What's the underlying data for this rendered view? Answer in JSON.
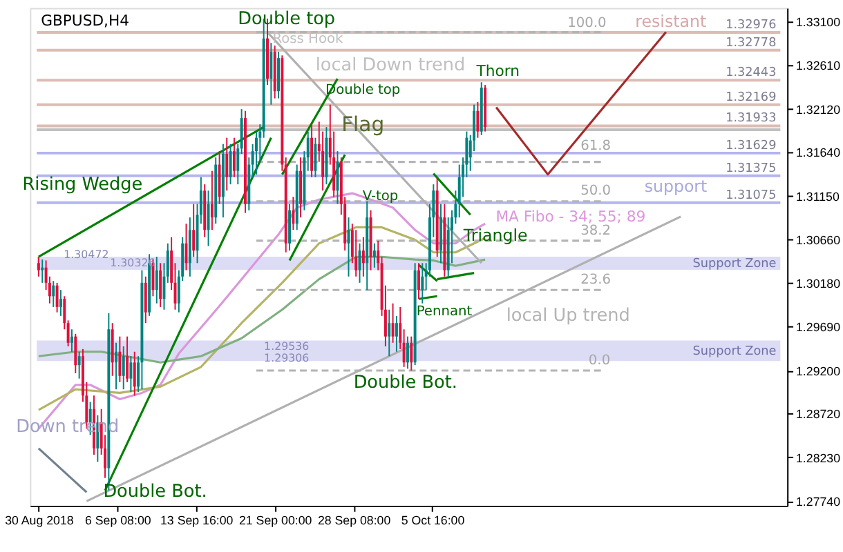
{
  "chart_data": {
    "type": "candlestick",
    "title": "GBPUSD,H4",
    "x": [
      "2018-08-30T00:00",
      "2018-08-30T08:15",
      "2018-08-30T16:30",
      "2018-08-31T00:45",
      "2018-08-31T09:00",
      "2018-08-31T17:15",
      "2018-09-01T01:30",
      "2018-09-01T09:45",
      "2018-09-01T18:00",
      "2018-09-02T02:15",
      "2018-09-02T10:30",
      "2018-09-02T18:45",
      "2018-09-03T03:00",
      "2018-09-03T11:15",
      "2018-09-03T19:30",
      "2018-09-04T03:45",
      "2018-09-04T12:00",
      "2018-09-04T20:15",
      "2018-09-05T04:30",
      "2018-09-05T12:45",
      "2018-09-05T21:00",
      "2018-09-06T05:15",
      "2018-09-06T13:30",
      "2018-09-06T21:45",
      "2018-09-07T06:00",
      "2018-09-07T14:15",
      "2018-09-07T22:30",
      "2018-09-08T06:45",
      "2018-09-08T15:00",
      "2018-09-08T23:15",
      "2018-09-09T07:30",
      "2018-09-09T15:45",
      "2018-09-10T00:00",
      "2018-09-10T08:15",
      "2018-09-10T16:30",
      "2018-09-11T00:45",
      "2018-09-11T09:00",
      "2018-09-11T17:15",
      "2018-09-12T01:30",
      "2018-09-12T09:45",
      "2018-09-12T18:00",
      "2018-09-13T02:15",
      "2018-09-13T10:30",
      "2018-09-13T18:45",
      "2018-09-14T03:00",
      "2018-09-14T11:15",
      "2018-09-14T19:30",
      "2018-09-15T03:45",
      "2018-09-15T12:00",
      "2018-09-15T20:15",
      "2018-09-16T04:30",
      "2018-09-16T12:45",
      "2018-09-16T21:00",
      "2018-09-17T05:15",
      "2018-09-17T13:30",
      "2018-09-17T21:45",
      "2018-09-18T06:00",
      "2018-09-18T14:15",
      "2018-09-18T22:30",
      "2018-09-19T06:45",
      "2018-09-19T15:00",
      "2018-09-19T23:15",
      "2018-09-20T07:30",
      "2018-09-20T15:45",
      "2018-09-21T00:00",
      "2018-09-21T08:15",
      "2018-09-21T16:30",
      "2018-09-22T00:45",
      "2018-09-22T09:00",
      "2018-09-22T17:15",
      "2018-09-23T01:30",
      "2018-09-23T09:45",
      "2018-09-23T18:00",
      "2018-09-24T02:15",
      "2018-09-24T10:30",
      "2018-09-24T18:45",
      "2018-09-25T03:00",
      "2018-09-25T11:15",
      "2018-09-25T19:30",
      "2018-09-26T03:45",
      "2018-09-26T12:00",
      "2018-09-26T20:15",
      "2018-09-27T04:30",
      "2018-09-27T12:45",
      "2018-09-27T21:00",
      "2018-09-28T05:15",
      "2018-09-28T13:30",
      "2018-09-28T21:45",
      "2018-09-29T06:00",
      "2018-09-29T14:15",
      "2018-09-29T22:30",
      "2018-09-30T06:45",
      "2018-09-30T15:00",
      "2018-09-30T23:15",
      "2018-10-01T07:30",
      "2018-10-01T15:45",
      "2018-10-02T00:00",
      "2018-10-02T08:15",
      "2018-10-02T16:30",
      "2018-10-03T00:45",
      "2018-10-03T09:00",
      "2018-10-03T17:15",
      "2018-10-04T01:30",
      "2018-10-04T09:45",
      "2018-10-04T18:00",
      "2018-10-05T02:15",
      "2018-10-05T10:30",
      "2018-10-05T18:45",
      "2018-10-06T03:00",
      "2018-10-06T11:15",
      "2018-10-06T19:30",
      "2018-10-07T03:45",
      "2018-10-07T12:00",
      "2018-10-07T20:15",
      "2018-10-08T04:30",
      "2018-10-08T12:45",
      "2018-10-08T21:00",
      "2018-10-09T05:15",
      "2018-10-09T13:30",
      "2018-10-09T21:45",
      "2018-10-10T06:00",
      "2018-10-10T14:15"
    ],
    "ohlc": [
      [
        1.304,
        1.3047,
        1.3025,
        1.3032
      ],
      [
        1.3032,
        1.3044,
        1.3018,
        1.3035
      ],
      [
        1.3035,
        1.3043,
        1.301,
        1.3018
      ],
      [
        1.3018,
        1.3025,
        1.2995,
        1.3003
      ],
      [
        1.3003,
        1.302,
        1.2991,
        1.3015
      ],
      [
        1.3015,
        1.3018,
        1.2985,
        1.2991
      ],
      [
        1.2991,
        1.301,
        1.2981,
        1.3
      ],
      [
        1.3,
        1.3003,
        1.2966,
        1.2973
      ],
      [
        1.2973,
        1.2976,
        1.2947,
        1.2951
      ],
      [
        1.2951,
        1.2966,
        1.2941,
        1.2958
      ],
      [
        1.2958,
        1.2961,
        1.2917,
        1.2926
      ],
      [
        1.2926,
        1.2941,
        1.2911,
        1.2936
      ],
      [
        1.2936,
        1.2944,
        1.2885,
        1.2892
      ],
      [
        1.2892,
        1.2907,
        1.2855,
        1.2862
      ],
      [
        1.2862,
        1.2885,
        1.2848,
        1.2877
      ],
      [
        1.2877,
        1.2892,
        1.2826,
        1.2833
      ],
      [
        1.2833,
        1.287,
        1.2818,
        1.2862
      ],
      [
        1.2862,
        1.2877,
        1.2826,
        1.2833
      ],
      [
        1.2833,
        1.2848,
        1.28,
        1.2811
      ],
      [
        1.2811,
        1.2984,
        1.2786,
        1.2966
      ],
      [
        1.2966,
        1.2973,
        1.2914,
        1.2929
      ],
      [
        1.2929,
        1.2951,
        1.2899,
        1.2941
      ],
      [
        1.2941,
        1.2958,
        1.2907,
        1.2914
      ],
      [
        1.2914,
        1.2947,
        1.2899,
        1.2936
      ],
      [
        1.2936,
        1.2958,
        1.2907,
        1.2911
      ],
      [
        1.2911,
        1.2936,
        1.2896,
        1.2929
      ],
      [
        1.2929,
        1.2941,
        1.2892,
        1.2902
      ],
      [
        1.2902,
        1.2936,
        1.2896,
        1.2929
      ],
      [
        1.2929,
        1.3032,
        1.2899,
        1.3018
      ],
      [
        1.3018,
        1.3025,
        1.2973,
        1.2985
      ],
      [
        1.2985,
        1.305,
        1.2981,
        1.304
      ],
      [
        1.304,
        1.3044,
        1.3003,
        1.301
      ],
      [
        1.301,
        1.3047,
        1.2995,
        1.3032
      ],
      [
        1.3032,
        1.304,
        1.2991,
        1.3
      ],
      [
        1.3,
        1.304,
        1.2988,
        1.3025
      ],
      [
        1.3025,
        1.3062,
        1.3018,
        1.3054
      ],
      [
        1.3054,
        1.3069,
        1.301,
        1.3018
      ],
      [
        1.3018,
        1.304,
        1.2988,
        1.2995
      ],
      [
        1.2995,
        1.3032,
        1.2985,
        1.3025
      ],
      [
        1.3025,
        1.3069,
        1.302,
        1.3062
      ],
      [
        1.3062,
        1.3084,
        1.3032,
        1.304
      ],
      [
        1.304,
        1.3091,
        1.3025,
        1.3077
      ],
      [
        1.3077,
        1.3106,
        1.3047,
        1.3054
      ],
      [
        1.3054,
        1.3106,
        1.304,
        1.3094
      ],
      [
        1.3094,
        1.3136,
        1.3084,
        1.3121
      ],
      [
        1.3121,
        1.3128,
        1.3069,
        1.3077
      ],
      [
        1.3077,
        1.3121,
        1.3059,
        1.3106
      ],
      [
        1.3106,
        1.3143,
        1.3077,
        1.3091
      ],
      [
        1.3091,
        1.3158,
        1.3084,
        1.315
      ],
      [
        1.315,
        1.3165,
        1.3106,
        1.3114
      ],
      [
        1.3114,
        1.3173,
        1.3091,
        1.3162
      ],
      [
        1.3162,
        1.318,
        1.3121,
        1.3136
      ],
      [
        1.3136,
        1.3173,
        1.3128,
        1.3165
      ],
      [
        1.3165,
        1.318,
        1.3136,
        1.3143
      ],
      [
        1.3143,
        1.3173,
        1.3128,
        1.3168
      ],
      [
        1.3168,
        1.3212,
        1.3162,
        1.3202
      ],
      [
        1.3202,
        1.321,
        1.3096,
        1.3106
      ],
      [
        1.3106,
        1.3158,
        1.3099,
        1.315
      ],
      [
        1.315,
        1.3173,
        1.3136,
        1.3165
      ],
      [
        1.3165,
        1.3187,
        1.3139,
        1.318
      ],
      [
        1.318,
        1.3195,
        1.3153,
        1.3187
      ],
      [
        1.3187,
        1.3313,
        1.318,
        1.3291
      ],
      [
        1.3291,
        1.3313,
        1.3239,
        1.3246
      ],
      [
        1.3246,
        1.3286,
        1.3217,
        1.3276
      ],
      [
        1.3276,
        1.3283,
        1.3224,
        1.3232
      ],
      [
        1.3232,
        1.3276,
        1.3224,
        1.3269
      ],
      [
        1.3269,
        1.3272,
        1.3143,
        1.315
      ],
      [
        1.315,
        1.3158,
        1.3052,
        1.3062
      ],
      [
        1.3062,
        1.3106,
        1.3054,
        1.3099
      ],
      [
        1.3099,
        1.3114,
        1.3077,
        1.3084
      ],
      [
        1.3084,
        1.315,
        1.3077,
        1.3143
      ],
      [
        1.3143,
        1.3158,
        1.3091,
        1.3106
      ],
      [
        1.3106,
        1.3165,
        1.3099,
        1.3158
      ],
      [
        1.3158,
        1.3187,
        1.3143,
        1.318
      ],
      [
        1.318,
        1.3195,
        1.3136,
        1.3143
      ],
      [
        1.3143,
        1.318,
        1.3136,
        1.3173
      ],
      [
        1.3173,
        1.3198,
        1.3153,
        1.3165
      ],
      [
        1.3165,
        1.3187,
        1.3121,
        1.3136
      ],
      [
        1.3136,
        1.3192,
        1.3128,
        1.318
      ],
      [
        1.318,
        1.3217,
        1.315,
        1.3158
      ],
      [
        1.3158,
        1.3187,
        1.3114,
        1.3121
      ],
      [
        1.3121,
        1.3165,
        1.3106,
        1.3153
      ],
      [
        1.3153,
        1.3158,
        1.3094,
        1.3106
      ],
      [
        1.3106,
        1.3114,
        1.3054,
        1.3062
      ],
      [
        1.3062,
        1.3091,
        1.3025,
        1.3077
      ],
      [
        1.3077,
        1.3084,
        1.304,
        1.3047
      ],
      [
        1.3047,
        1.3077,
        1.3025,
        1.3032
      ],
      [
        1.3032,
        1.3062,
        1.3018,
        1.3054
      ],
      [
        1.3054,
        1.3069,
        1.3025,
        1.304
      ],
      [
        1.304,
        1.3109,
        1.301,
        1.3091
      ],
      [
        1.3091,
        1.3099,
        1.3032,
        1.3047
      ],
      [
        1.3047,
        1.3062,
        1.3035,
        1.3054
      ],
      [
        1.3054,
        1.3065,
        1.3032,
        1.304
      ],
      [
        1.304,
        1.3047,
        1.2981,
        1.2988
      ],
      [
        1.2988,
        1.3015,
        1.2947,
        1.2958
      ],
      [
        1.2958,
        1.2988,
        1.2936,
        1.2973
      ],
      [
        1.2973,
        1.2995,
        1.2951,
        1.2958
      ],
      [
        1.2958,
        1.2981,
        1.2941,
        1.2973
      ],
      [
        1.2973,
        1.2991,
        1.2944,
        1.2951
      ],
      [
        1.2951,
        1.2966,
        1.2924,
        1.2929
      ],
      [
        1.2929,
        1.2958,
        1.2922,
        1.2951
      ],
      [
        1.2951,
        1.2958,
        1.292,
        1.2929
      ],
      [
        1.2929,
        1.304,
        1.2926,
        1.3032
      ],
      [
        1.3032,
        1.304,
        1.3,
        1.301
      ],
      [
        1.301,
        1.304,
        1.2995,
        1.3025
      ],
      [
        1.3025,
        1.304,
        1.301,
        1.3032
      ],
      [
        1.3032,
        1.3106,
        1.3025,
        1.3091
      ],
      [
        1.3091,
        1.3128,
        1.3069,
        1.3121
      ],
      [
        1.3121,
        1.3136,
        1.3047,
        1.3054
      ],
      [
        1.3054,
        1.3106,
        1.304,
        1.3091
      ],
      [
        1.3091,
        1.3106,
        1.3025,
        1.3032
      ],
      [
        1.3032,
        1.3091,
        1.3025,
        1.3077
      ],
      [
        1.3077,
        1.3099,
        1.304,
        1.3091
      ],
      [
        1.3091,
        1.3121,
        1.3084,
        1.3106
      ],
      [
        1.3106,
        1.315,
        1.3091,
        1.3136
      ],
      [
        1.3136,
        1.3158,
        1.3114,
        1.315
      ],
      [
        1.315,
        1.3187,
        1.3136,
        1.318
      ],
      [
        1.3158,
        1.3183,
        1.3143,
        1.3177
      ],
      [
        1.3177,
        1.3217,
        1.3165,
        1.321
      ],
      [
        1.321,
        1.322,
        1.318,
        1.3187
      ],
      [
        1.3187,
        1.3242,
        1.3183,
        1.3236
      ],
      [
        1.3236,
        1.3239,
        1.3187,
        1.3192
      ]
    ],
    "colors": [
      "#e0103c",
      "#00827f",
      "#e0103c",
      "#e0103c",
      "#00827f",
      "#e0103c",
      "#00827f",
      "#e0103c",
      "#e0103c",
      "#00827f",
      "#e0103c",
      "#00827f",
      "#e0103c",
      "#e0103c",
      "#00827f",
      "#e0103c",
      "#00827f",
      "#e0103c",
      "#e0103c",
      "#00827f",
      "#e0103c",
      "#00827f",
      "#e0103c",
      "#00827f",
      "#e0103c",
      "#00827f",
      "#e0103c",
      "#00827f",
      "#00827f",
      "#e0103c",
      "#00827f",
      "#e0103c",
      "#00827f",
      "#e0103c",
      "#00827f",
      "#00827f",
      "#e0103c",
      "#e0103c",
      "#00827f",
      "#00827f",
      "#e0103c",
      "#00827f",
      "#e0103c",
      "#00827f",
      "#00827f",
      "#e0103c",
      "#00827f",
      "#e0103c",
      "#00827f",
      "#e0103c",
      "#00827f",
      "#e0103c",
      "#00827f",
      "#e0103c",
      "#00827f",
      "#00827f",
      "#e0103c",
      "#00827f",
      "#00827f",
      "#00827f",
      "#00827f",
      "#00827f",
      "#e0103c",
      "#00827f",
      "#e0103c",
      "#00827f",
      "#e0103c",
      "#e0103c",
      "#00827f",
      "#e0103c",
      "#00827f",
      "#e0103c",
      "#00827f",
      "#00827f",
      "#e0103c",
      "#00827f",
      "#e0103c",
      "#e0103c",
      "#00827f",
      "#e0103c",
      "#e0103c",
      "#00827f",
      "#e0103c",
      "#e0103c",
      "#00827f",
      "#e0103c",
      "#e0103c",
      "#00827f",
      "#e0103c",
      "#00827f",
      "#e0103c",
      "#00827f",
      "#e0103c",
      "#e0103c",
      "#e0103c",
      "#00827f",
      "#e0103c",
      "#00827f",
      "#e0103c",
      "#e0103c",
      "#00827f",
      "#e0103c",
      "#00827f",
      "#e0103c",
      "#00827f",
      "#00827f",
      "#00827f",
      "#00827f",
      "#e0103c",
      "#00827f",
      "#e0103c",
      "#00827f",
      "#00827f",
      "#00827f",
      "#00827f",
      "#00827f",
      "#00827f",
      "#00827f",
      "#00827f",
      "#e0103c",
      "#00827f",
      "#e0103c"
    ],
    "xlim": [
      "2018-08-29T19:52",
      "2018-11-07T02:15"
    ],
    "xticks": [
      {
        "value": "2018-08-30T00:00",
        "label": "30 Aug 2018"
      },
      {
        "value": "2018-09-06T08:00",
        "label": "6 Sep 08:00"
      },
      {
        "value": "2018-09-13T16:00",
        "label": "13 Sep 16:00"
      },
      {
        "value": "2018-09-21T00:00",
        "label": "21 Sep 00:00"
      },
      {
        "value": "2018-09-28T08:00",
        "label": "28 Sep 08:00"
      },
      {
        "value": "2018-10-05T16:00",
        "label": "5 Oct 16:00"
      }
    ],
    "ylim": [
      1.2769,
      1.3325
    ],
    "yticks": [
      {
        "value": 1.331,
        "label": "1.33100"
      },
      {
        "value": 1.3261,
        "label": "1.32610"
      },
      {
        "value": 1.3212,
        "label": "1.32120"
      },
      {
        "value": 1.3164,
        "label": "1.31640"
      },
      {
        "value": 1.3115,
        "label": "1.31150"
      },
      {
        "value": 1.3066,
        "label": "1.30660"
      },
      {
        "value": 1.3018,
        "label": "1.30180"
      },
      {
        "value": 1.2969,
        "label": "1.29690"
      },
      {
        "value": 1.292,
        "label": "1.29200"
      },
      {
        "value": 1.2872,
        "label": "1.28720"
      },
      {
        "value": 1.2823,
        "label": "1.28230"
      },
      {
        "value": 1.2774,
        "label": "1.27740"
      }
    ],
    "grid": false,
    "bands": [
      {
        "axis": "y",
        "from": 1.30326,
        "to": 1.30472,
        "label": "Support Zone",
        "color": "#dcdcf5"
      },
      {
        "axis": "y",
        "from": 1.29306,
        "to": 1.29536,
        "label": "Support Zone",
        "color": "#dcdcf5"
      }
    ],
    "ref_lines": [
      {
        "axis": "y",
        "value": 1.32976,
        "label": "1.32976",
        "color": "#dcbcb4"
      },
      {
        "axis": "y",
        "value": 1.32778,
        "label": "1.32778",
        "color": "#dcbcb4"
      },
      {
        "axis": "y",
        "value": 1.32443,
        "label": "1.32443",
        "color": "#dcbcb4"
      },
      {
        "axis": "y",
        "value": 1.32169,
        "label": "1.32169",
        "color": "#dcbcb4"
      },
      {
        "axis": "y",
        "value": 1.31933,
        "label": "1.31933",
        "color": "#dcbcb4"
      },
      {
        "axis": "y",
        "value": 1.3189,
        "color": "#c0c0c0"
      },
      {
        "axis": "y",
        "value": 1.31629,
        "label": "1.31629",
        "color": "#b4b4f0"
      },
      {
        "axis": "y",
        "value": 1.31375,
        "label": "1.31375",
        "color": "#b4b4f0"
      },
      {
        "axis": "y",
        "value": 1.31075,
        "label": "1.31075",
        "color": "#b4b4f0"
      }
    ],
    "series": [
      {
        "type": "line",
        "color": "#dc96dc",
        "x": [
          "2018-08-30T00:00",
          "2018-09-02T10:30",
          "2018-09-03T19:30",
          "2018-09-06T13:30",
          "2018-09-08T15:00",
          "2018-09-10T08:15",
          "2018-09-12T01:30",
          "2018-09-15T20:15",
          "2018-09-18T14:15",
          "2018-09-21T08:15",
          "2018-09-23T01:30",
          "2018-09-25T03:00",
          "2018-09-28T05:15",
          "2018-09-29T22:30",
          "2018-10-02T00:00",
          "2018-10-04T01:30",
          "2018-10-05T18:45",
          "2018-10-07T20:15",
          "2018-10-09T13:30",
          "2018-10-10T14:15"
        ],
        "values": [
          1.2855,
          1.2904,
          1.2904,
          1.2888,
          1.2895,
          1.2904,
          1.2939,
          1.2992,
          1.3032,
          1.3072,
          1.3102,
          1.3111,
          1.3118,
          1.3111,
          1.3102,
          1.3077,
          1.3062,
          1.3062,
          1.3077,
          1.3084
        ]
      },
      {
        "type": "line",
        "color": "#b4b464",
        "x": [
          "2018-08-30T00:00",
          "2018-09-02T10:30",
          "2018-09-06T13:30",
          "2018-09-10T08:15",
          "2018-09-14T03:00",
          "2018-09-17T21:45",
          "2018-09-21T16:30",
          "2018-09-25T03:00",
          "2018-09-28T13:30",
          "2018-09-30T23:15",
          "2018-10-04T01:30",
          "2018-10-05T18:45",
          "2018-10-07T20:15",
          "2018-10-09T13:30",
          "2018-10-10T14:15"
        ],
        "values": [
          1.2876,
          1.2899,
          1.2895,
          1.2902,
          1.2924,
          1.2973,
          1.3018,
          1.3062,
          1.308,
          1.308,
          1.3066,
          1.3052,
          1.3052,
          1.3062,
          1.3068
        ]
      },
      {
        "type": "line",
        "color": "#80b080",
        "x": [
          "2018-08-30T00:00",
          "2018-09-02T10:30",
          "2018-09-04T20:15",
          "2018-09-10T08:15",
          "2018-09-14T03:00",
          "2018-09-17T21:45",
          "2018-09-21T16:30",
          "2018-09-25T03:00",
          "2018-09-28T13:30",
          "2018-09-30T23:15",
          "2018-10-04T01:30",
          "2018-10-05T18:45",
          "2018-10-07T20:15",
          "2018-10-10T14:15"
        ],
        "values": [
          1.2936,
          1.2941,
          1.2941,
          1.2929,
          1.2936,
          1.2956,
          1.2988,
          1.3022,
          1.3047,
          1.3047,
          1.3044,
          1.3043,
          1.3037,
          1.3044
        ]
      },
      {
        "type": "line",
        "color": "#b4b4b4",
        "line_style": "dashed",
        "x": [
          "2018-09-19T06:45",
          "2018-10-21T14:15"
        ],
        "values": [
          1.3298,
          1.3298
        ]
      },
      {
        "type": "line",
        "color": "#b4b4b4",
        "line_style": "dashed",
        "x": [
          "2018-09-19T06:45",
          "2018-10-21T14:15"
        ],
        "values": [
          1.3153,
          1.3153
        ]
      },
      {
        "type": "line",
        "color": "#b4b4b4",
        "line_style": "dashed",
        "x": [
          "2018-09-19T06:45",
          "2018-10-21T14:15"
        ],
        "values": [
          1.3109,
          1.3109
        ]
      },
      {
        "type": "line",
        "color": "#b4b4b4",
        "line_style": "dashed",
        "x": [
          "2018-09-19T06:45",
          "2018-10-21T14:15"
        ],
        "values": [
          1.3065,
          1.3065
        ]
      },
      {
        "type": "line",
        "color": "#b4b4b4",
        "line_style": "dashed",
        "x": [
          "2018-09-19T06:45",
          "2018-10-21T14:15"
        ],
        "values": [
          1.301,
          1.301
        ]
      },
      {
        "type": "line",
        "color": "#b4b4b4",
        "line_style": "dashed",
        "x": [
          "2018-09-19T06:45",
          "2018-10-21T14:15"
        ],
        "values": [
          1.292,
          1.292
        ]
      },
      {
        "type": "line",
        "color": "#b0b0b0",
        "x": [
          "2018-09-20T07:30",
          "2018-10-10T06:00"
        ],
        "values": [
          1.3298,
          1.304
        ]
      },
      {
        "type": "line",
        "color": "#b0b0b0",
        "x": [
          "2018-09-03T11:15",
          "2018-10-28T19:30"
        ],
        "values": [
          1.2774,
          1.3092
        ]
      },
      {
        "type": "line",
        "color": "#708090",
        "x": [
          "2018-08-30T00:00",
          "2018-09-03T11:15"
        ],
        "values": [
          1.2833,
          1.2784
        ]
      },
      {
        "type": "line",
        "color": "#008000",
        "x": [
          "2018-08-30T00:00",
          "2018-09-19T23:15"
        ],
        "values": [
          1.3047,
          1.3192
        ]
      },
      {
        "type": "line",
        "color": "#008000",
        "x": [
          "2018-09-05T04:30",
          "2018-09-20T15:45"
        ],
        "values": [
          1.2786,
          1.318
        ]
      },
      {
        "type": "line",
        "color": "#008000",
        "x": [
          "2018-09-21T16:30",
          "2018-09-26T20:15"
        ],
        "values": [
          1.3139,
          1.3246
        ]
      },
      {
        "type": "line",
        "color": "#008000",
        "x": [
          "2018-09-22T09:00",
          "2018-09-27T12:45"
        ],
        "values": [
          1.3043,
          1.3161
        ]
      },
      {
        "type": "line",
        "color": "#008000",
        "x": [
          "2018-10-04T09:45",
          "2018-10-06T03:00"
        ],
        "values": [
          1.3038,
          1.302
        ]
      },
      {
        "type": "line",
        "color": "#008000",
        "x": [
          "2018-10-04T09:45",
          "2018-10-06T03:00"
        ],
        "values": [
          1.3,
          1.3003
        ]
      },
      {
        "type": "line",
        "color": "#008000",
        "x": [
          "2018-10-05T18:45",
          "2018-10-09T05:15"
        ],
        "values": [
          1.314,
          1.3094
        ]
      },
      {
        "type": "line",
        "color": "#008000",
        "x": [
          "2018-10-06T03:00",
          "2018-10-09T13:30"
        ],
        "values": [
          1.3022,
          1.3029
        ]
      },
      {
        "type": "line",
        "color": "#a52a2a",
        "x": [
          "2018-10-11T15:00",
          "2018-10-16T10:30",
          "2018-10-27T10:30"
        ],
        "values": [
          1.3214,
          1.3139,
          1.3298
        ]
      }
    ],
    "annotations": [
      "Double top",
      "Ross Hook",
      "local Down trend",
      "Double top",
      "Flag",
      "Thorn",
      "Rising Wedge",
      "V-top",
      "MA Fibo - 34; 55; 89",
      "Triangle",
      "Pennant",
      "local  Up trend",
      "Double Bot.",
      "Down trend",
      "Double Bot.",
      "resistant",
      "support",
      "100.0",
      "61.8",
      "50.0",
      "38.2",
      "23.6",
      "0.0",
      "1.30472",
      "1.30326",
      "1.29536",
      "1.29306"
    ]
  }
}
